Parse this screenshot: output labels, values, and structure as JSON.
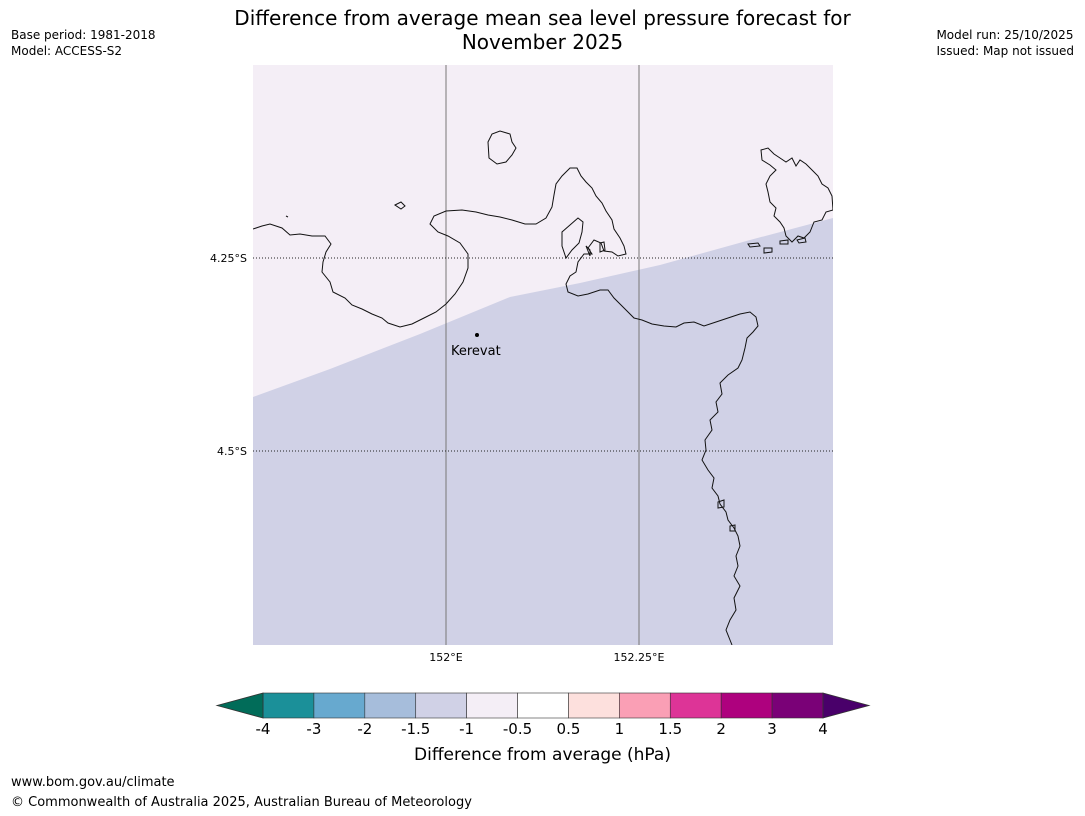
{
  "header": {
    "title_line1": "Difference from average mean sea level pressure forecast for",
    "title_line2": "November 2025",
    "base_period": "Base period: 1981-2018",
    "model": "Model: ACCESS-S2",
    "model_run": "Model run: 25/10/2025",
    "issued": "Issued: Map not issued"
  },
  "map": {
    "lat_labels": [
      "4.25°S",
      "4.5°S"
    ],
    "lon_labels": [
      "152°E",
      "152.25°E"
    ],
    "places": [
      {
        "name": "Kerevat"
      }
    ],
    "fill_colors": {
      "upper": "#f4eef6",
      "lower": "#d0d1e6"
    },
    "upper_band_range": "-1 to -0.5",
    "lower_band_range": "-1.5 to -1"
  },
  "colorbar": {
    "title": "Difference from average (hPa)",
    "ticks": [
      "-4",
      "-3",
      "-2",
      "-1.5",
      "-1",
      "-0.5",
      "0.5",
      "1",
      "1.5",
      "2",
      "3",
      "4"
    ],
    "extend_low_color": "#016c59",
    "extend_high_color": "#49006a",
    "colors": [
      "#1b9099",
      "#67a9cf",
      "#a6bddb",
      "#d0d1e6",
      "#f4eef6",
      "#ffffff",
      "#fde0dd",
      "#fa9fb5",
      "#dd3497",
      "#ae017e",
      "#7a0177"
    ]
  },
  "footer": {
    "url": "www.bom.gov.au/climate",
    "copyright": "© Commonwealth of Australia 2025, Australian Bureau of Meteorology"
  }
}
